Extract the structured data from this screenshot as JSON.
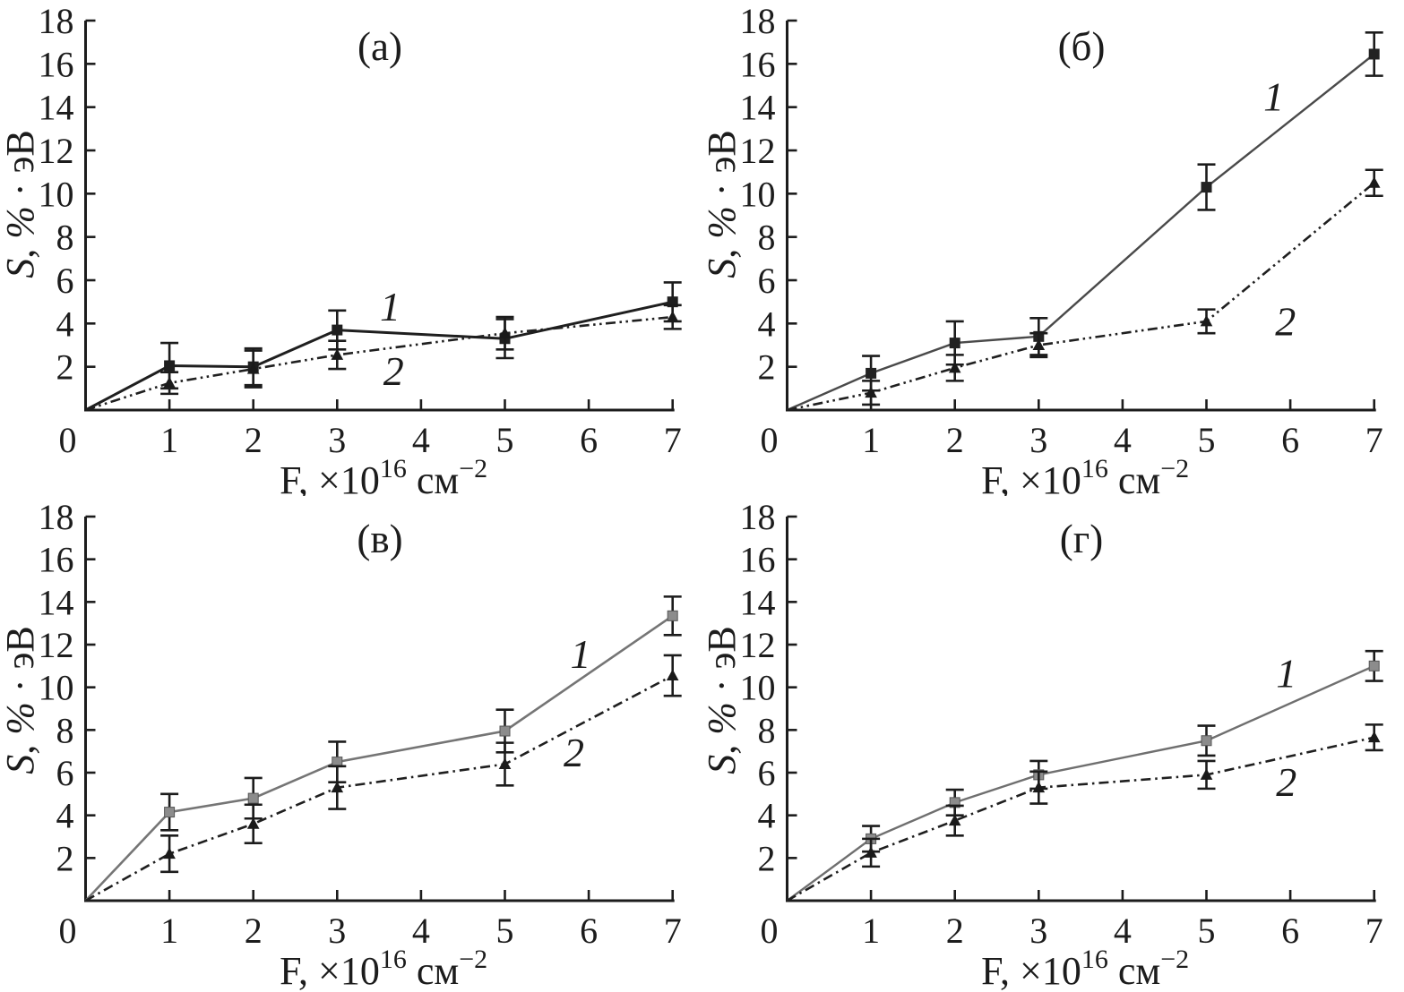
{
  "figure_title": "",
  "common": {
    "x_ticks": [
      0,
      1,
      2,
      3,
      4,
      5,
      6,
      7
    ],
    "y_ticks": [
      2,
      4,
      6,
      8,
      10,
      12,
      14,
      16,
      18
    ],
    "xlim": [
      0,
      7
    ],
    "ylim": [
      0,
      18
    ],
    "xlabel_parts": [
      {
        "t": "F, ×10",
        "sup": false
      },
      {
        "t": "16",
        "sup": true
      },
      {
        "t": " см",
        "sup": false
      },
      {
        "t": "−2",
        "sup": true
      }
    ],
    "ylabel_parts": [
      {
        "t": "S",
        "italic": true
      },
      {
        "t": ", ",
        "italic": false
      },
      {
        "t": "%",
        "italic": true
      },
      {
        "t": " · ",
        "italic": false
      },
      {
        "t": "эВ",
        "italic": false
      }
    ],
    "grid": false,
    "legend": "inline numeric labels 1 and 2 next to curves"
  },
  "chart_data": [
    {
      "type": "line",
      "panel_label": "(а)",
      "series": [
        {
          "name": "1",
          "marker": "square",
          "line": "solid",
          "x": [
            0,
            1,
            2,
            3,
            5,
            7
          ],
          "y": [
            0,
            2.05,
            2.0,
            3.7,
            3.3,
            5.0
          ],
          "err": [
            0,
            1.05,
            0.85,
            0.9,
            0.9,
            0.9
          ],
          "label_pos": [
            3.51,
            4.14
          ]
        },
        {
          "name": "2",
          "marker": "triangle",
          "line": "dashdot",
          "x": [
            0,
            1,
            2,
            3,
            5,
            7
          ],
          "y": [
            0,
            1.25,
            1.9,
            2.55,
            3.55,
            4.3
          ],
          "err": [
            0,
            0.5,
            0.85,
            0.65,
            0.75,
            0.55
          ],
          "label_pos": [
            3.55,
            1.15
          ]
        }
      ],
      "style": {
        "line1": "#1f1f1f",
        "line1_width": 3,
        "marker1": "#1f1f1f",
        "marker1_edge": "#1f1f1f",
        "dash": "11 4.5 2.5 4.5 2.5 4.5"
      }
    },
    {
      "type": "line",
      "panel_label": "(б)",
      "series": [
        {
          "name": "1",
          "marker": "square",
          "line": "solid",
          "x": [
            0,
            1,
            2,
            3,
            5,
            7
          ],
          "y": [
            0,
            1.7,
            3.1,
            3.4,
            10.3,
            16.45
          ],
          "err": [
            0,
            0.8,
            1.0,
            0.85,
            1.05,
            1.0
          ],
          "label_pos": [
            5.68,
            13.85
          ]
        },
        {
          "name": "2",
          "marker": "triangle",
          "line": "dashdot",
          "x": [
            0,
            1,
            2,
            3,
            5,
            7
          ],
          "y": [
            0,
            0.8,
            1.95,
            3.0,
            4.1,
            10.5
          ],
          "err": [
            0,
            0.55,
            0.6,
            0.55,
            0.55,
            0.6
          ],
          "label_pos": [
            5.82,
            3.45
          ]
        }
      ],
      "style": {
        "line1": "#4a4a4a",
        "line1_width": 2.4,
        "marker1": "#222222",
        "marker1_edge": "#222222",
        "dash": "11 4.5 2.5 4.5 2.5 4.5"
      }
    },
    {
      "type": "line",
      "panel_label": "(в)",
      "series": [
        {
          "name": "1",
          "marker": "square",
          "line": "solid",
          "x": [
            0,
            1,
            2,
            3,
            5,
            7
          ],
          "y": [
            0,
            4.15,
            4.8,
            6.5,
            7.95,
            13.35
          ],
          "err": [
            0,
            0.85,
            0.95,
            0.95,
            1.0,
            0.9
          ],
          "label_pos": [
            5.78,
            10.9
          ]
        },
        {
          "name": "2",
          "marker": "triangle",
          "line": "dashdot",
          "x": [
            0,
            1,
            2,
            3,
            5,
            7
          ],
          "y": [
            0,
            2.2,
            3.6,
            5.3,
            6.4,
            10.55
          ],
          "err": [
            0,
            0.85,
            0.9,
            1.0,
            1.0,
            0.95
          ],
          "label_pos": [
            5.7,
            6.3
          ]
        }
      ],
      "style": {
        "line1": "#757575",
        "line1_width": 2.6,
        "marker1": "#8c8c8c",
        "marker1_edge": "#555555",
        "dash": "11 5 2.5 5"
      }
    },
    {
      "type": "line",
      "panel_label": "(г)",
      "series": [
        {
          "name": "1",
          "marker": "square",
          "line": "solid",
          "x": [
            0,
            1,
            2,
            3,
            5,
            7
          ],
          "y": [
            0,
            2.9,
            4.6,
            5.9,
            7.5,
            11.0
          ],
          "err": [
            0,
            0.6,
            0.6,
            0.65,
            0.7,
            0.7
          ],
          "label_pos": [
            5.83,
            10.0
          ]
        },
        {
          "name": "2",
          "marker": "triangle",
          "line": "dashdot",
          "x": [
            0,
            1,
            2,
            3,
            5,
            7
          ],
          "y": [
            0,
            2.25,
            3.75,
            5.3,
            5.9,
            7.65
          ],
          "err": [
            0,
            0.65,
            0.7,
            0.75,
            0.65,
            0.6
          ],
          "label_pos": [
            5.83,
            4.9
          ]
        }
      ],
      "style": {
        "line1": "#6f6f6f",
        "line1_width": 2.4,
        "marker1": "#8c8c8c",
        "marker1_edge": "#555555",
        "dash": "11 5 2.5 5"
      }
    }
  ]
}
